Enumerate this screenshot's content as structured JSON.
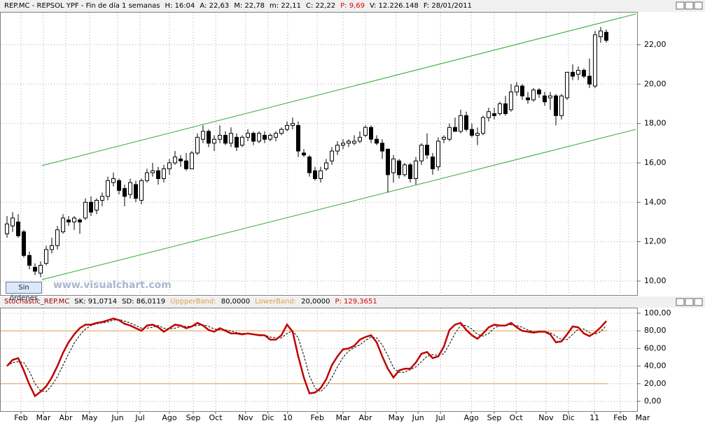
{
  "chart_data": [
    {
      "type": "candlestick",
      "header": [
        {
          "text": "REP.MC - REPSOL YPF - Fin de día 1 semanas",
          "color": "#000000"
        },
        {
          "text": "H: 16:04",
          "color": "#000000"
        },
        {
          "text": "A: 22,63",
          "color": "#000000"
        },
        {
          "text": "M: 22,78",
          "color": "#000000"
        },
        {
          "text": "m: 22,11",
          "color": "#000000"
        },
        {
          "text": "C: 22,22",
          "color": "#000000"
        },
        {
          "text": "P: 9,69",
          "color": "#e00000"
        },
        {
          "text": "V: 12.226.148",
          "color": "#000000"
        },
        {
          "text": "F: 28/01/2011",
          "color": "#000000"
        }
      ],
      "open": [
        12.4,
        12.8,
        13.0,
        12.5,
        11.3,
        10.7,
        10.4,
        10.9,
        11.6,
        11.8,
        12.5,
        13.1,
        13.0,
        13.1,
        13.2,
        14.0,
        13.6,
        14.1,
        14.3,
        15.0,
        15.1,
        14.7,
        14.4,
        14.9,
        14.1,
        15.1,
        15.5,
        15.6,
        15.2,
        15.7,
        16.0,
        16.2,
        16.1,
        15.7,
        16.5,
        17.2,
        17.6,
        17.0,
        17.2,
        17.4,
        17.0,
        17.3,
        16.9,
        17.3,
        17.5,
        17.1,
        17.4,
        17.2,
        17.3,
        17.5,
        17.7,
        17.9,
        17.9,
        16.5,
        16.3,
        15.6,
        15.2,
        15.7,
        16.1,
        16.6,
        16.9,
        17.0,
        17.0,
        17.1,
        17.4,
        17.8,
        17.2,
        17.0,
        16.7,
        15.5,
        16.1,
        15.4,
        15.9,
        15.2,
        16.1,
        16.9,
        16.3,
        15.8,
        17.2,
        17.2,
        17.8,
        17.6,
        18.4,
        17.7,
        17.4,
        17.5,
        18.3,
        18.5,
        18.5,
        19.0,
        18.7,
        19.6,
        19.9,
        19.3,
        19.2,
        19.7,
        19.4,
        19.3,
        19.4,
        18.4,
        19.3,
        20.6,
        20.5,
        20.7,
        20.4,
        19.9,
        22.4,
        22.63
      ],
      "high": [
        13.3,
        13.5,
        13.4,
        12.6,
        11.5,
        10.9,
        11.0,
        11.8,
        12.2,
        12.8,
        13.4,
        13.3,
        13.3,
        13.2,
        14.2,
        14.3,
        14.2,
        14.5,
        15.3,
        15.5,
        15.2,
        14.9,
        15.2,
        15.1,
        15.2,
        15.7,
        16.0,
        15.8,
        15.9,
        16.2,
        16.6,
        16.4,
        16.5,
        16.6,
        17.5,
        17.9,
        17.7,
        17.4,
        17.9,
        17.6,
        17.8,
        17.5,
        17.4,
        17.7,
        17.6,
        17.6,
        17.6,
        17.5,
        17.6,
        17.8,
        18.1,
        18.3,
        18.1,
        16.7,
        16.4,
        15.8,
        15.8,
        16.2,
        16.8,
        17.1,
        17.2,
        17.2,
        17.4,
        17.6,
        17.9,
        17.9,
        17.4,
        17.2,
        16.7,
        16.4,
        16.2,
        16.0,
        16.0,
        16.3,
        17.0,
        17.5,
        16.5,
        17.3,
        17.4,
        18.0,
        18.3,
        18.7,
        18.6,
        18.0,
        17.8,
        18.4,
        18.8,
        18.8,
        19.1,
        19.4,
        20.0,
        20.1,
        20.0,
        19.6,
        19.8,
        19.8,
        19.6,
        19.6,
        19.5,
        19.5,
        20.6,
        21.0,
        20.9,
        20.8,
        21.3,
        22.7,
        22.9,
        22.78
      ],
      "low": [
        12.2,
        12.5,
        12.2,
        11.2,
        10.6,
        10.3,
        10.2,
        10.8,
        11.4,
        11.6,
        12.4,
        12.8,
        12.6,
        12.4,
        13.1,
        13.3,
        13.4,
        13.8,
        14.1,
        14.8,
        14.4,
        13.8,
        14.2,
        14.0,
        13.9,
        15.0,
        15.3,
        14.9,
        15.0,
        15.4,
        15.9,
        15.8,
        15.6,
        15.7,
        16.4,
        17.0,
        16.8,
        16.6,
        17.0,
        16.9,
        16.8,
        16.6,
        16.8,
        17.1,
        16.9,
        17.0,
        17.0,
        17.1,
        17.1,
        17.4,
        17.6,
        17.7,
        16.3,
        16.3,
        15.3,
        15.1,
        15.0,
        15.6,
        15.9,
        16.4,
        16.7,
        16.8,
        16.9,
        17.0,
        17.3,
        17.0,
        16.9,
        16.2,
        14.5,
        15.0,
        15.2,
        15.3,
        15.0,
        14.9,
        15.9,
        16.2,
        15.4,
        15.6,
        17.0,
        17.1,
        17.6,
        17.5,
        17.6,
        17.3,
        16.9,
        17.4,
        18.1,
        18.2,
        18.4,
        18.4,
        18.6,
        19.4,
        19.2,
        19.0,
        19.1,
        19.3,
        18.9,
        18.7,
        17.9,
        18.2,
        19.2,
        20.2,
        20.2,
        20.3,
        19.8,
        19.8,
        22.1,
        22.11
      ],
      "close": [
        12.9,
        13.2,
        12.3,
        11.3,
        10.8,
        10.5,
        10.8,
        11.6,
        11.8,
        12.6,
        13.2,
        13.0,
        13.2,
        13.0,
        14.0,
        13.5,
        14.1,
        14.3,
        15.1,
        15.2,
        14.6,
        14.3,
        15.0,
        14.2,
        15.1,
        15.5,
        15.6,
        15.2,
        15.7,
        16.0,
        16.3,
        16.1,
        15.7,
        16.5,
        17.3,
        17.6,
        17.0,
        17.2,
        17.4,
        17.0,
        17.5,
        16.8,
        17.3,
        17.5,
        17.1,
        17.5,
        17.2,
        17.4,
        17.5,
        17.7,
        17.9,
        18.0,
        16.6,
        16.4,
        15.5,
        15.2,
        15.6,
        16.0,
        16.6,
        16.9,
        17.0,
        17.1,
        17.1,
        17.3,
        17.8,
        17.2,
        17.0,
        16.6,
        15.4,
        16.2,
        15.4,
        15.9,
        15.2,
        16.1,
        16.9,
        16.4,
        15.7,
        17.1,
        17.3,
        17.8,
        17.6,
        18.4,
        17.7,
        17.4,
        17.5,
        18.3,
        18.6,
        18.4,
        19.0,
        18.5,
        19.6,
        19.9,
        19.4,
        19.2,
        19.7,
        19.5,
        19.1,
        19.4,
        18.4,
        19.4,
        20.6,
        20.4,
        20.7,
        20.4,
        20.0,
        22.5,
        22.7,
        22.22
      ],
      "up_color": "#ffffff",
      "down_color": "#000000",
      "trendlines": [
        {
          "x": [
            6.25,
            112.25
          ],
          "y": [
            15.86,
            23.56
          ],
          "color": "#33aa33"
        },
        {
          "x": [
            6.25,
            112.25
          ],
          "y": [
            10.07,
            17.7
          ],
          "color": "#33aa33"
        }
      ],
      "ylim": [
        9.29,
        23.63
      ],
      "yticks": [
        {
          "value": 10,
          "label": "10,00"
        },
        {
          "value": 12,
          "label": "12,00"
        },
        {
          "value": 14,
          "label": "14,00"
        },
        {
          "value": 16,
          "label": "16,00"
        },
        {
          "value": 18,
          "label": "18,00"
        },
        {
          "value": 20,
          "label": "20,00"
        },
        {
          "value": 22,
          "label": "22,00"
        }
      ],
      "grid": true
    },
    {
      "type": "line",
      "header": [
        {
          "text": "Stochastic_REP.MC",
          "color": "#a00000"
        },
        {
          "text": "SK: 91,0714",
          "color": "#000000"
        },
        {
          "text": "SD: 86,0119",
          "color": "#000000"
        },
        {
          "text": "UppperBand:",
          "color": "#e0a050"
        },
        {
          "text": "80,0000",
          "color": "#000000"
        },
        {
          "text": "LowerBand:",
          "color": "#e0a050"
        },
        {
          "text": "20,0000",
          "color": "#000000"
        },
        {
          "text": "P: 129,3651",
          "color": "#e00000"
        }
      ],
      "series": [
        {
          "name": "SK",
          "color": "#c00000",
          "values": [
            40,
            47,
            49,
            35,
            19,
            6,
            11,
            17,
            27,
            40,
            55,
            67,
            76,
            83,
            87,
            87,
            89,
            90,
            92,
            94,
            92,
            88,
            86,
            83,
            80,
            86,
            87,
            84,
            79,
            83,
            87,
            86,
            83,
            85,
            89,
            86,
            81,
            79,
            83,
            80,
            77,
            77,
            76,
            77,
            76,
            75,
            75,
            70,
            70,
            75,
            87,
            79,
            51,
            27,
            9,
            10,
            15,
            25,
            41,
            51,
            59,
            60,
            63,
            70,
            73,
            75,
            67,
            51,
            37,
            27,
            35,
            37,
            37,
            44,
            54,
            56,
            49,
            51,
            62,
            81,
            87,
            89,
            81,
            75,
            71,
            77,
            84,
            87,
            86,
            86,
            89,
            84,
            80,
            79,
            78,
            79,
            79,
            76,
            67,
            68,
            76,
            85,
            84,
            77,
            74,
            78,
            84,
            91.07
          ]
        },
        {
          "name": "SD",
          "color": "#000000",
          "values": [
            40,
            44,
            45,
            44,
            34,
            20,
            12,
            11,
            18,
            28,
            41,
            54,
            66,
            75,
            82,
            86,
            88,
            89,
            90,
            92,
            93,
            91,
            89,
            86,
            83,
            83,
            84,
            86,
            83,
            82,
            83,
            85,
            85,
            85,
            86,
            87,
            85,
            82,
            81,
            81,
            80,
            78,
            77,
            77,
            76,
            76,
            75,
            73,
            72,
            72,
            77,
            80,
            72,
            52,
            29,
            15,
            11,
            17,
            27,
            39,
            50,
            57,
            61,
            64,
            69,
            73,
            72,
            64,
            52,
            38,
            33,
            33,
            36,
            39,
            45,
            51,
            53,
            52,
            54,
            65,
            77,
            86,
            86,
            82,
            76,
            74,
            77,
            83,
            86,
            86,
            87,
            86,
            84,
            81,
            79,
            79,
            79,
            78,
            74,
            70,
            70,
            76,
            82,
            82,
            78,
            76,
            79,
            86.01
          ]
        }
      ],
      "upper_band": 80,
      "lower_band": 20,
      "band_color": "#e0a050",
      "xlim": [
        -1.25,
        113.75
      ],
      "xticks": [
        {
          "value": 2.5,
          "label": "Feb"
        },
        {
          "value": 6.5,
          "label": "Mar"
        },
        {
          "value": 10.5,
          "label": "Abr"
        },
        {
          "value": 14.75,
          "label": "May"
        },
        {
          "value": 19.75,
          "label": "Jun"
        },
        {
          "value": 23.75,
          "label": "Jul"
        },
        {
          "value": 29,
          "label": "Ago"
        },
        {
          "value": 33.25,
          "label": "Sep"
        },
        {
          "value": 37.25,
          "label": "Oct"
        },
        {
          "value": 42.6,
          "label": "Nov"
        },
        {
          "value": 46.6,
          "label": "Dic"
        },
        {
          "value": 50.1,
          "label": "10"
        },
        {
          "value": 55.4,
          "label": "Feb"
        },
        {
          "value": 60,
          "label": "Mar"
        },
        {
          "value": 64,
          "label": "Abr"
        },
        {
          "value": 69.5,
          "label": "May"
        },
        {
          "value": 73.4,
          "label": "Jun"
        },
        {
          "value": 77.4,
          "label": "Jul"
        },
        {
          "value": 82.9,
          "label": "Ago"
        },
        {
          "value": 87,
          "label": "Sep"
        },
        {
          "value": 90.9,
          "label": "Oct"
        },
        {
          "value": 96.25,
          "label": "Nov"
        },
        {
          "value": 100.25,
          "label": "Dic"
        },
        {
          "value": 104.9,
          "label": "11"
        },
        {
          "value": 109.5,
          "label": "Feb"
        },
        {
          "value": 113.5,
          "label": "Mar"
        }
      ],
      "ylim": [
        -11.1,
        106.3
      ],
      "yticks": [
        {
          "value": 0,
          "label": "0,00"
        },
        {
          "value": 20,
          "label": "20,00"
        },
        {
          "value": 40,
          "label": "40,00"
        },
        {
          "value": 60,
          "label": "60,00"
        },
        {
          "value": 80,
          "label": "80,00"
        },
        {
          "value": 100,
          "label": "100,00"
        }
      ],
      "grid": true
    }
  ],
  "watermark": "www.visualchart.com",
  "button": "Sin órdenes"
}
